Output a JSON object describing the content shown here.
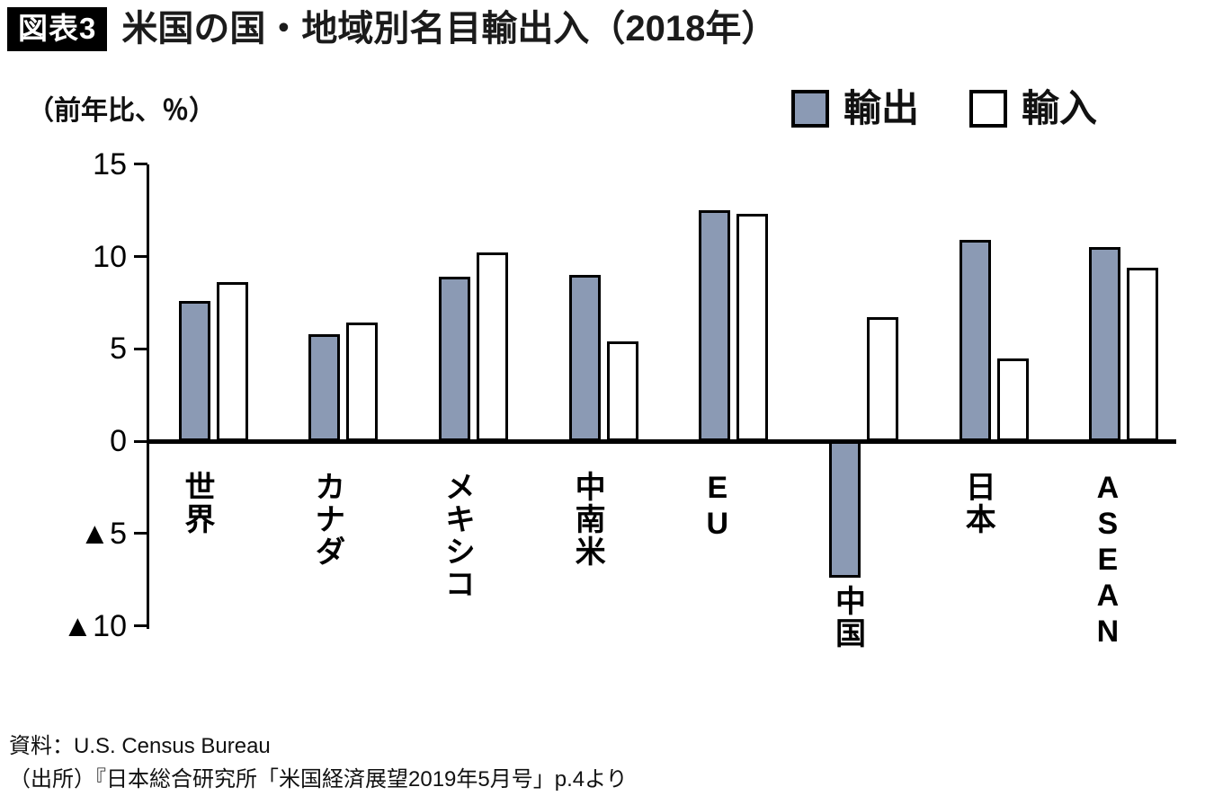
{
  "header": {
    "badge": "図表3",
    "title": "米国の国・地域別名目輸出入（2018年）"
  },
  "axis_unit_label": "（前年比、％）",
  "legend": {
    "items": [
      {
        "label": "輸出",
        "fill": "#8B9AB4"
      },
      {
        "label": "輸入",
        "fill": "#FFFFFF"
      }
    ]
  },
  "colors": {
    "export_bar": "#8B9AB4",
    "import_bar": "#FFFFFF",
    "bar_border": "#000000",
    "axis": "#000000"
  },
  "chart_data": {
    "type": "bar",
    "title": "米国の国・地域別名目輸出入（2018年）",
    "ylabel": "（前年比、％）",
    "categories": [
      "世界",
      "カナダ",
      "メキシコ",
      "中南米",
      "EU",
      "中国",
      "日本",
      "ASEAN"
    ],
    "series": [
      {
        "name": "輸出",
        "values": [
          7.6,
          5.8,
          8.9,
          9.0,
          12.5,
          -7.4,
          10.9,
          10.5
        ]
      },
      {
        "name": "輸入",
        "values": [
          8.6,
          6.4,
          10.2,
          5.4,
          12.3,
          6.7,
          4.5,
          9.4
        ]
      }
    ],
    "ylim": [
      -10,
      15
    ],
    "ytick_values": [
      15,
      10,
      5,
      0,
      -5,
      -10
    ],
    "ytick_labels": [
      "15",
      "10",
      "5",
      "0",
      "▲5",
      "▲10"
    ],
    "grid": false,
    "legend_position": "top-right"
  },
  "source": {
    "line1": "資料：U.S. Census Bureau",
    "line2": "（出所）『日本総合研究所「米国経済展望2019年5月号」p.4より"
  }
}
